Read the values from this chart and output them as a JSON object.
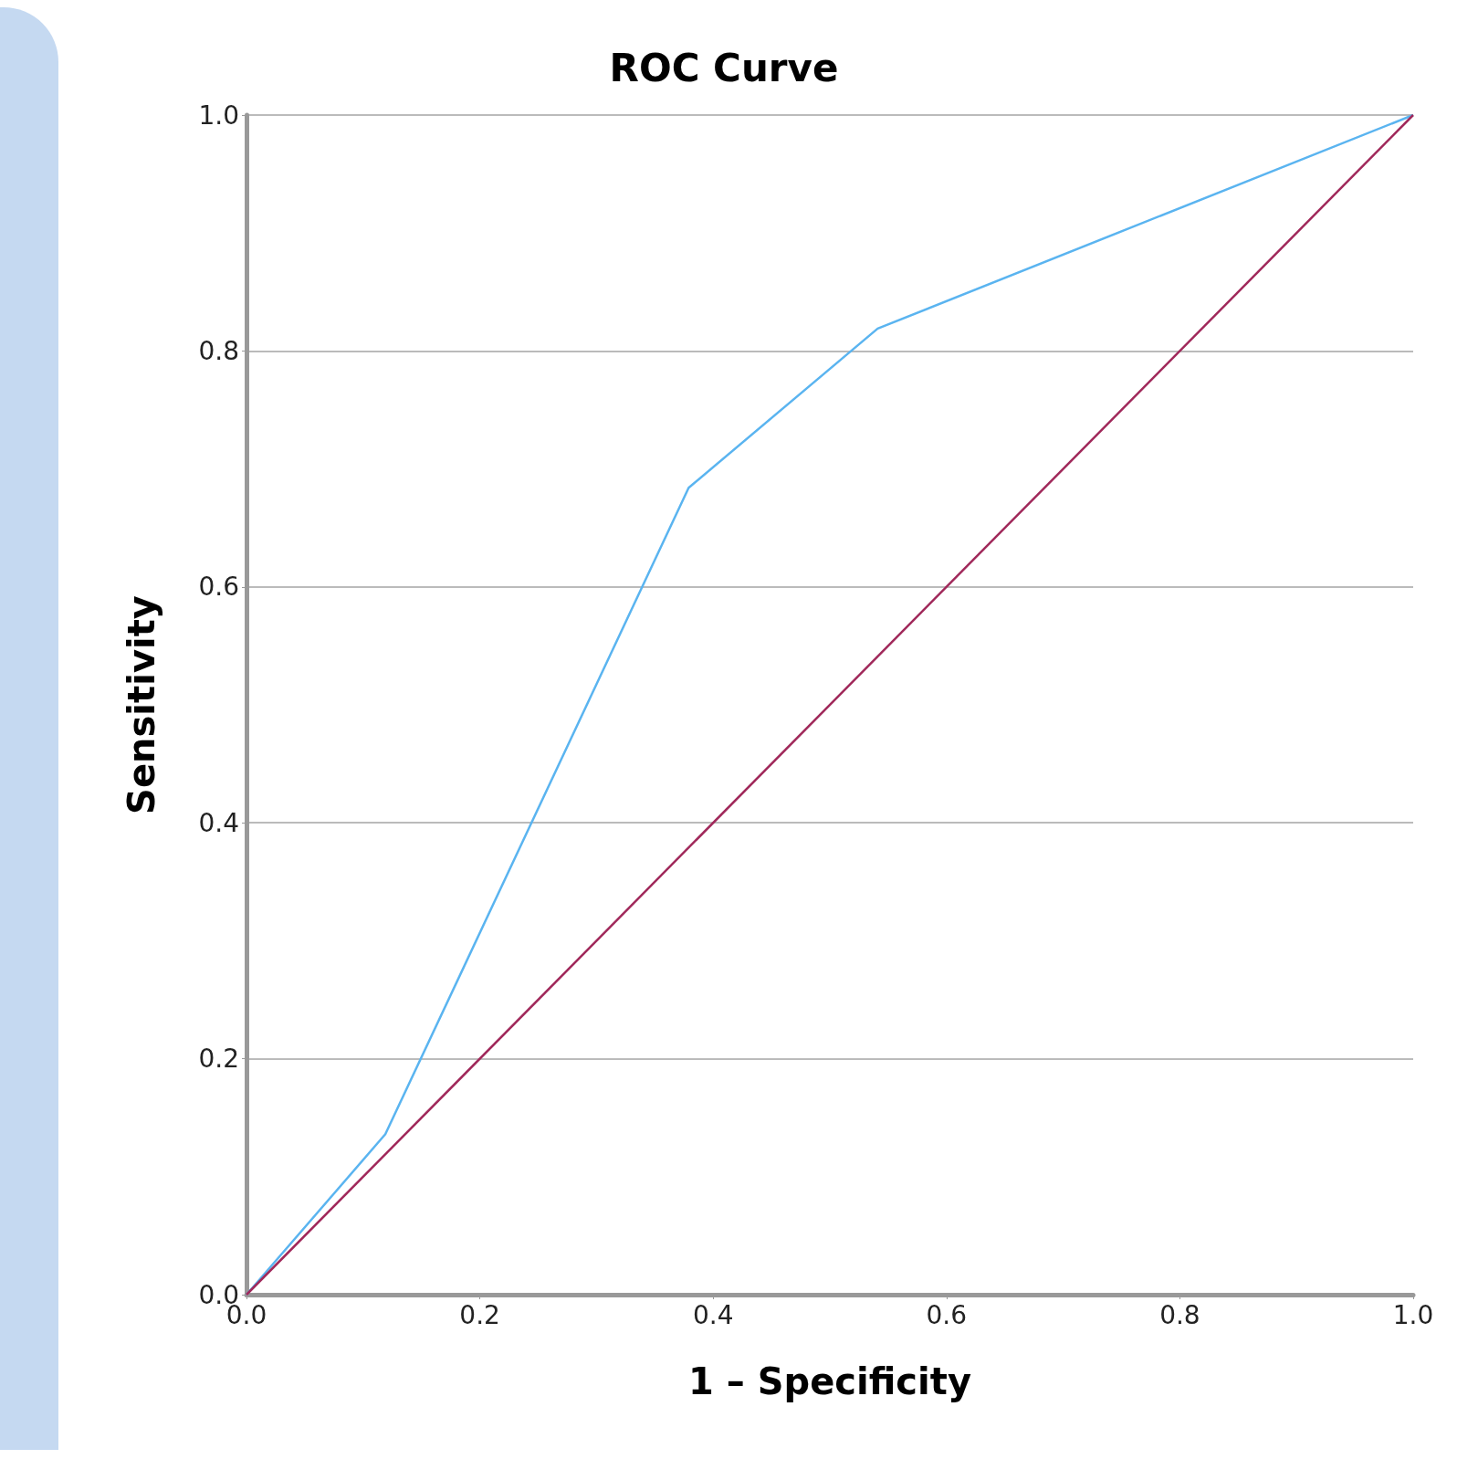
{
  "chart_data": {
    "type": "line",
    "title": "ROC Curve",
    "xlabel": "1 – Specificity",
    "ylabel": "Sensitivity",
    "xlim": [
      0,
      1
    ],
    "ylim": [
      0,
      1
    ],
    "xticks": [
      {
        "value": 0,
        "label": "0.0"
      },
      0.2,
      0.4,
      0.6,
      0.8,
      {
        "value": 1,
        "label": "1.0"
      }
    ],
    "yticks": [
      {
        "value": 0,
        "label": "0.0"
      },
      0.2,
      0.4,
      0.6,
      0.8,
      {
        "value": 1,
        "label": "1.0"
      }
    ],
    "series": [
      {
        "color": "#5ab4f0",
        "x": [
          0,
          0.119,
          0.379,
          0.541,
          1
        ],
        "values": [
          0,
          0.136,
          0.684,
          0.819,
          1
        ]
      },
      {
        "color": "#a0285a",
        "x": [
          0,
          1
        ],
        "values": [
          0,
          1
        ]
      }
    ],
    "grid": "y",
    "marker": "none",
    "line_style": "solid"
  }
}
